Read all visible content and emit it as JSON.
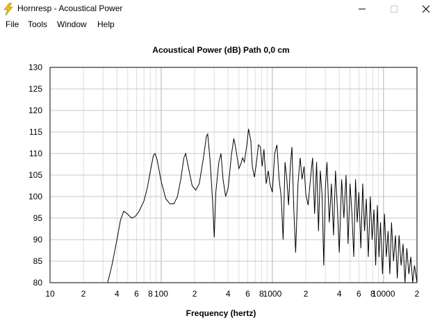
{
  "window": {
    "title": "Hornresp - Acoustical Power",
    "icon": "lightning-icon"
  },
  "menu": {
    "items": [
      "File",
      "Tools",
      "Window",
      "Help"
    ]
  },
  "chart_data": {
    "type": "line",
    "title": "Acoustical Power (dB)   Path 0,0 cm",
    "xlabel": "Frequency (hertz)",
    "ylabel": "",
    "x_scale": "log",
    "xlim": [
      10,
      20000
    ],
    "ylim": [
      80,
      130
    ],
    "grid": true,
    "line_color": "#000000",
    "y_ticks": [
      "130",
      "125",
      "120",
      "115",
      "110",
      "105",
      "100",
      "95",
      "90",
      "85",
      "80"
    ],
    "x_tick_labels": [
      {
        "f": 10,
        "label": "10"
      },
      {
        "f": 20,
        "label": "2"
      },
      {
        "f": 40,
        "label": "4"
      },
      {
        "f": 60,
        "label": "6"
      },
      {
        "f": 80,
        "label": "8"
      },
      {
        "f": 100,
        "label": "100"
      },
      {
        "f": 200,
        "label": "2"
      },
      {
        "f": 400,
        "label": "4"
      },
      {
        "f": 600,
        "label": "6"
      },
      {
        "f": 800,
        "label": "8"
      },
      {
        "f": 1000,
        "label": "1000"
      },
      {
        "f": 2000,
        "label": "2"
      },
      {
        "f": 4000,
        "label": "4"
      },
      {
        "f": 6000,
        "label": "6"
      },
      {
        "f": 8000,
        "label": "8"
      },
      {
        "f": 10000,
        "label": "10000"
      },
      {
        "f": 20000,
        "label": "2"
      }
    ],
    "series": [
      {
        "values": [
          [
            33,
            80
          ],
          [
            36,
            84
          ],
          [
            40,
            90
          ],
          [
            43,
            94.5
          ],
          [
            46,
            96.6
          ],
          [
            50,
            95.9
          ],
          [
            54,
            95
          ],
          [
            58,
            95.3
          ],
          [
            63,
            96.5
          ],
          [
            70,
            99
          ],
          [
            75,
            102
          ],
          [
            80,
            106
          ],
          [
            85,
            109.5
          ],
          [
            88,
            110
          ],
          [
            92,
            108.5
          ],
          [
            100,
            103.5
          ],
          [
            110,
            99.5
          ],
          [
            120,
            98.3
          ],
          [
            130,
            98.3
          ],
          [
            140,
            100
          ],
          [
            150,
            104
          ],
          [
            160,
            109
          ],
          [
            166,
            110
          ],
          [
            175,
            107
          ],
          [
            190,
            102.5
          ],
          [
            205,
            101.5
          ],
          [
            220,
            103
          ],
          [
            240,
            109
          ],
          [
            255,
            114
          ],
          [
            262,
            114.5
          ],
          [
            275,
            108.5
          ],
          [
            290,
            99
          ],
          [
            300,
            90.5
          ],
          [
            310,
            101
          ],
          [
            330,
            108
          ],
          [
            345,
            110
          ],
          [
            360,
            104
          ],
          [
            380,
            100
          ],
          [
            400,
            102
          ],
          [
            430,
            110
          ],
          [
            450,
            113.5
          ],
          [
            470,
            111
          ],
          [
            500,
            106.5
          ],
          [
            520,
            107.5
          ],
          [
            540,
            109
          ],
          [
            560,
            108
          ],
          [
            590,
            112
          ],
          [
            610,
            115.7
          ],
          [
            640,
            113
          ],
          [
            660,
            107
          ],
          [
            690,
            104.5
          ],
          [
            720,
            108
          ],
          [
            750,
            112
          ],
          [
            780,
            111.5
          ],
          [
            810,
            107
          ],
          [
            840,
            111
          ],
          [
            880,
            103
          ],
          [
            920,
            106
          ],
          [
            950,
            103
          ],
          [
            1000,
            101
          ],
          [
            1050,
            110
          ],
          [
            1100,
            112
          ],
          [
            1150,
            104
          ],
          [
            1200,
            100
          ],
          [
            1250,
            90
          ],
          [
            1300,
            108
          ],
          [
            1350,
            104
          ],
          [
            1400,
            98
          ],
          [
            1450,
            107
          ],
          [
            1500,
            111.5
          ],
          [
            1560,
            97
          ],
          [
            1620,
            87
          ],
          [
            1700,
            103
          ],
          [
            1780,
            109
          ],
          [
            1850,
            104
          ],
          [
            1930,
            107
          ],
          [
            2000,
            100.5
          ],
          [
            2100,
            98
          ],
          [
            2200,
            104
          ],
          [
            2300,
            109
          ],
          [
            2400,
            96
          ],
          [
            2500,
            108
          ],
          [
            2600,
            92
          ],
          [
            2700,
            106
          ],
          [
            2800,
            100.5
          ],
          [
            2900,
            84
          ],
          [
            3000,
            102
          ],
          [
            3100,
            108
          ],
          [
            3250,
            94
          ],
          [
            3400,
            103
          ],
          [
            3550,
            91
          ],
          [
            3700,
            106
          ],
          [
            3850,
            97
          ],
          [
            4000,
            87
          ],
          [
            4200,
            104
          ],
          [
            4400,
            95
          ],
          [
            4600,
            105
          ],
          [
            4800,
            89
          ],
          [
            5000,
            103
          ],
          [
            5200,
            96
          ],
          [
            5400,
            86
          ],
          [
            5600,
            104
          ],
          [
            5800,
            94
          ],
          [
            6000,
            101
          ],
          [
            6250,
            88
          ],
          [
            6500,
            103
          ],
          [
            6750,
            92
          ],
          [
            7000,
            99.5
          ],
          [
            7300,
            86
          ],
          [
            7600,
            100
          ],
          [
            7900,
            90
          ],
          [
            8200,
            97
          ],
          [
            8500,
            84
          ],
          [
            8800,
            98
          ],
          [
            9100,
            86
          ],
          [
            9400,
            94
          ],
          [
            9800,
            82
          ],
          [
            10200,
            96
          ],
          [
            10600,
            86
          ],
          [
            11000,
            92
          ],
          [
            11400,
            82
          ],
          [
            11800,
            94
          ],
          [
            12300,
            85
          ],
          [
            12800,
            91
          ],
          [
            13300,
            81
          ],
          [
            13800,
            91
          ],
          [
            14400,
            84
          ],
          [
            15000,
            89
          ],
          [
            15600,
            80
          ],
          [
            16200,
            88
          ],
          [
            16900,
            82
          ],
          [
            17600,
            86
          ],
          [
            18300,
            80
          ],
          [
            19000,
            84
          ],
          [
            20000,
            80
          ]
        ]
      }
    ]
  }
}
